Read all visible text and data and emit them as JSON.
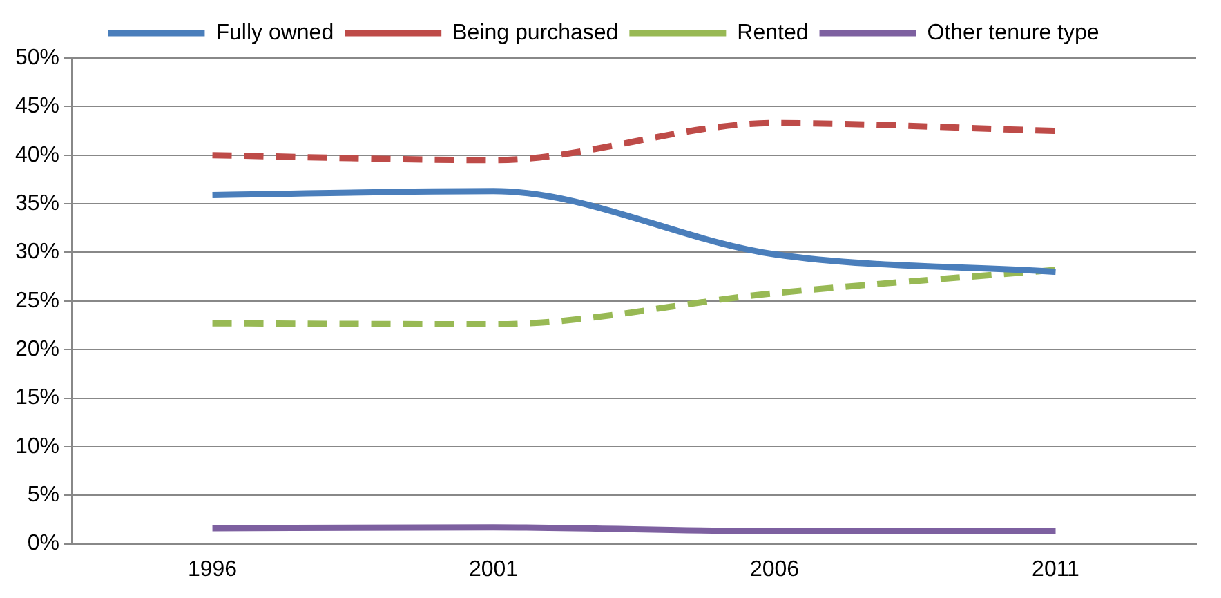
{
  "chart_data": {
    "type": "line",
    "categories": [
      "1996",
      "2001",
      "2006",
      "2011"
    ],
    "series": [
      {
        "name": "Fully owned",
        "color": "#4a7ebb",
        "line_style": "solid",
        "values": [
          35.9,
          36.3,
          29.8,
          28.0
        ]
      },
      {
        "name": "Being purchased",
        "color": "#be4b48",
        "line_style": "dashed",
        "values": [
          40.0,
          39.5,
          43.3,
          42.5
        ]
      },
      {
        "name": "Rented",
        "color": "#98b954",
        "line_style": "dashed",
        "values": [
          22.7,
          22.6,
          25.8,
          28.2
        ]
      },
      {
        "name": "Other tenure type",
        "color": "#7d60a0",
        "line_style": "solid",
        "values": [
          1.6,
          1.7,
          1.3,
          1.3
        ]
      }
    ],
    "ylim": [
      0,
      50
    ],
    "yticks": [
      {
        "value": 0,
        "label": "0%"
      },
      {
        "value": 5,
        "label": "5%"
      },
      {
        "value": 10,
        "label": "10%"
      },
      {
        "value": 15,
        "label": "15%"
      },
      {
        "value": 20,
        "label": "20%"
      },
      {
        "value": 25,
        "label": "25%"
      },
      {
        "value": 30,
        "label": "30%"
      },
      {
        "value": 35,
        "label": "35%"
      },
      {
        "value": 40,
        "label": "40%"
      },
      {
        "value": 45,
        "label": "45%"
      },
      {
        "value": 50,
        "label": "50%"
      }
    ],
    "grid": "y",
    "legend": "top",
    "marker": "none"
  }
}
